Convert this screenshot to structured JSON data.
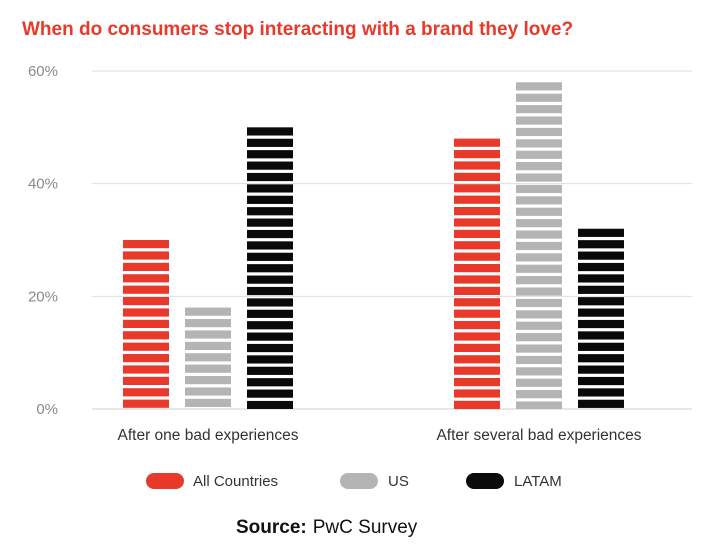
{
  "chart_data": {
    "type": "bar",
    "title": "When do consumers stop interacting with a brand they love?",
    "categories": [
      "After one bad experiences",
      "After several bad experiences"
    ],
    "series": [
      {
        "name": "All Countries",
        "values": [
          30,
          48
        ],
        "color": "#e8392b"
      },
      {
        "name": "US",
        "values": [
          18,
          58
        ],
        "color": "#b4b4b4"
      },
      {
        "name": "LATAM",
        "values": [
          50,
          32
        ],
        "color": "#0a0a0a"
      }
    ],
    "ylim": [
      0,
      60
    ],
    "yticks": [
      0,
      20,
      40,
      60
    ],
    "ytick_labels": [
      "0%",
      "20%",
      "40%",
      "60%"
    ],
    "grid": true,
    "legend_position": "bottom",
    "title_color": "#e8392b"
  },
  "source": {
    "label": "Source:",
    "text": "PwC Survey"
  }
}
